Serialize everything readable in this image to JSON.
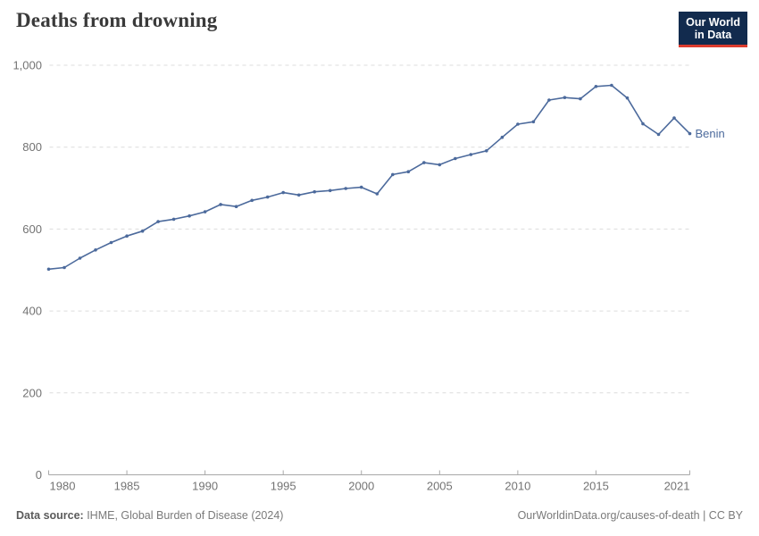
{
  "header": {
    "logo_line1": "Our World",
    "logo_line2": "in Data",
    "logo_bg_color": "#122b4e",
    "logo_accent_color": "#dc3c2e"
  },
  "chart_data": {
    "type": "line",
    "title": "Deaths from drowning",
    "xlabel": "",
    "ylabel": "",
    "xlim": [
      1980,
      2021
    ],
    "ylim": [
      0,
      1000
    ],
    "grid": "dashed-horizontal",
    "legend": "end-of-line-label",
    "line_color": "#4c6a9c",
    "yticks": [
      {
        "value": 0,
        "label": "0"
      },
      {
        "value": 200,
        "label": "200"
      },
      {
        "value": 400,
        "label": "400"
      },
      {
        "value": 600,
        "label": "600"
      },
      {
        "value": 800,
        "label": "800"
      },
      {
        "value": 1000,
        "label": "1,000"
      }
    ],
    "xticks": [
      {
        "value": 1980,
        "label": "1980"
      },
      {
        "value": 1985,
        "label": "1985"
      },
      {
        "value": 1990,
        "label": "1990"
      },
      {
        "value": 1995,
        "label": "1995"
      },
      {
        "value": 2000,
        "label": "2000"
      },
      {
        "value": 2005,
        "label": "2005"
      },
      {
        "value": 2010,
        "label": "2010"
      },
      {
        "value": 2015,
        "label": "2015"
      },
      {
        "value": 2021,
        "label": "2021"
      }
    ],
    "series": [
      {
        "name": "Benin",
        "color": "#4c6a9c",
        "x": [
          1980,
          1981,
          1982,
          1983,
          1984,
          1985,
          1986,
          1987,
          1988,
          1989,
          1990,
          1991,
          1992,
          1993,
          1994,
          1995,
          1996,
          1997,
          1998,
          1999,
          2000,
          2001,
          2002,
          2003,
          2004,
          2005,
          2006,
          2007,
          2008,
          2009,
          2010,
          2011,
          2012,
          2013,
          2014,
          2015,
          2016,
          2017,
          2018,
          2019,
          2020,
          2021
        ],
        "values": [
          502,
          506,
          529,
          549,
          567,
          583,
          595,
          618,
          624,
          632,
          642,
          660,
          655,
          670,
          678,
          689,
          683,
          691,
          694,
          699,
          702,
          686,
          733,
          740,
          762,
          757,
          772,
          782,
          791,
          824,
          856,
          862,
          915,
          921,
          918,
          948,
          951,
          920,
          857,
          831,
          871,
          833
        ]
      }
    ]
  },
  "footer": {
    "source_label": "Data source:",
    "source_text": " IHME, Global Burden of Disease (2024)",
    "credit": "OurWorldinData.org/causes-of-death | CC BY"
  }
}
